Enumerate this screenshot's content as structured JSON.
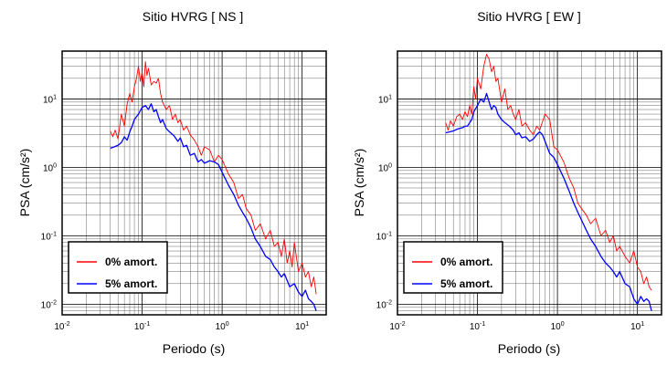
{
  "chart_data": [
    {
      "type": "line",
      "title": "Sitio HVRG [ NS ]",
      "xlabel": "Periodo (s)",
      "ylabel": "PSA (cm/s²)",
      "xscale": "log",
      "yscale": "log",
      "xlim": [
        0.01,
        20
      ],
      "ylim": [
        0.007,
        50
      ],
      "x_ticks": [
        "10-2",
        "10-1",
        "100",
        "101"
      ],
      "y_ticks": [
        "10-2",
        "10-1",
        "100",
        "101"
      ],
      "grid": true,
      "legend_placement": "bottom-left",
      "series": [
        {
          "name": "0% amort.",
          "color": "#ff0000",
          "x": [
            0.04,
            0.043,
            0.046,
            0.05,
            0.055,
            0.06,
            0.065,
            0.07,
            0.075,
            0.08,
            0.085,
            0.09,
            0.095,
            0.1,
            0.105,
            0.11,
            0.115,
            0.12,
            0.13,
            0.14,
            0.15,
            0.16,
            0.17,
            0.18,
            0.2,
            0.22,
            0.24,
            0.26,
            0.28,
            0.3,
            0.33,
            0.36,
            0.4,
            0.45,
            0.5,
            0.55,
            0.6,
            0.7,
            0.8,
            0.9,
            1.0,
            1.2,
            1.4,
            1.6,
            1.8,
            2.0,
            2.3,
            2.6,
            3.0,
            3.5,
            4.0,
            4.5,
            5.0,
            5.5,
            6.0,
            6.5,
            7.0,
            7.5,
            8.0,
            9.0,
            10.0,
            11.0,
            12.0,
            13.0,
            14.0,
            15.0
          ],
          "values": [
            3.4,
            2.8,
            3.5,
            2.6,
            6.0,
            4.0,
            8.5,
            12.0,
            9.0,
            15.0,
            20.0,
            30.0,
            18.0,
            25.0,
            15.0,
            35.0,
            22.0,
            28.0,
            16.0,
            18.0,
            17.0,
            20.0,
            12.0,
            9.0,
            7.0,
            8.0,
            5.0,
            6.0,
            4.5,
            5.0,
            3.5,
            4.0,
            3.0,
            2.5,
            2.0,
            1.5,
            2.0,
            1.8,
            1.2,
            1.5,
            1.3,
            0.8,
            0.6,
            0.35,
            0.4,
            0.25,
            0.2,
            0.12,
            0.15,
            0.09,
            0.12,
            0.07,
            0.08,
            0.05,
            0.09,
            0.04,
            0.06,
            0.035,
            0.08,
            0.03,
            0.04,
            0.025,
            0.03,
            0.018,
            0.025,
            0.014
          ]
        },
        {
          "name": "5% amort.",
          "color": "#0000ff",
          "x": [
            0.04,
            0.045,
            0.05,
            0.055,
            0.06,
            0.065,
            0.07,
            0.075,
            0.08,
            0.09,
            0.1,
            0.11,
            0.12,
            0.13,
            0.14,
            0.15,
            0.16,
            0.17,
            0.18,
            0.2,
            0.22,
            0.25,
            0.28,
            0.3,
            0.33,
            0.36,
            0.4,
            0.45,
            0.5,
            0.55,
            0.6,
            0.7,
            0.8,
            0.9,
            1.0,
            1.2,
            1.4,
            1.6,
            1.8,
            2.0,
            2.3,
            2.6,
            3.0,
            3.5,
            4.0,
            4.5,
            5.0,
            5.5,
            6.0,
            7.0,
            8.0,
            9.0,
            10.0,
            11.0,
            12.0,
            13.0,
            14.0,
            15.0
          ],
          "values": [
            1.9,
            2.0,
            2.1,
            2.3,
            2.8,
            2.5,
            3.3,
            4.0,
            5.0,
            6.0,
            7.5,
            8.0,
            7.0,
            8.5,
            6.5,
            7.0,
            5.5,
            4.5,
            5.0,
            3.7,
            3.3,
            2.9,
            2.4,
            2.7,
            2.0,
            2.1,
            1.5,
            1.6,
            1.2,
            1.3,
            1.15,
            1.25,
            1.2,
            1.1,
            0.85,
            0.55,
            0.4,
            0.28,
            0.22,
            0.18,
            0.13,
            0.09,
            0.07,
            0.05,
            0.045,
            0.035,
            0.03,
            0.025,
            0.028,
            0.018,
            0.02,
            0.015,
            0.013,
            0.016,
            0.012,
            0.011,
            0.01,
            0.008
          ]
        }
      ]
    },
    {
      "type": "line",
      "title": "Sitio HVRG [ EW ]",
      "xlabel": "Periodo (s)",
      "ylabel": "PSA (cm/s²)",
      "xscale": "log",
      "yscale": "log",
      "xlim": [
        0.01,
        20
      ],
      "ylim": [
        0.007,
        50
      ],
      "x_ticks": [
        "10-2",
        "10-1",
        "100",
        "101"
      ],
      "y_ticks": [
        "10-2",
        "10-1",
        "100",
        "101"
      ],
      "grid": true,
      "legend_placement": "bottom-left",
      "series": [
        {
          "name": "0% amort.",
          "color": "#ff0000",
          "x": [
            0.04,
            0.043,
            0.046,
            0.05,
            0.055,
            0.06,
            0.065,
            0.07,
            0.075,
            0.08,
            0.085,
            0.09,
            0.095,
            0.1,
            0.11,
            0.12,
            0.13,
            0.14,
            0.15,
            0.16,
            0.17,
            0.18,
            0.2,
            0.22,
            0.24,
            0.26,
            0.28,
            0.3,
            0.33,
            0.36,
            0.4,
            0.45,
            0.5,
            0.55,
            0.6,
            0.7,
            0.8,
            0.9,
            1.0,
            1.2,
            1.4,
            1.6,
            1.8,
            2.0,
            2.3,
            2.6,
            3.0,
            3.5,
            4.0,
            4.5,
            5.0,
            5.5,
            6.0,
            7.0,
            8.0,
            9.0,
            10.0,
            11.0,
            12.0,
            13.0,
            14.0,
            15.0
          ],
          "values": [
            4.5,
            3.5,
            4.8,
            4.0,
            5.5,
            6.0,
            5.0,
            6.5,
            5.5,
            8.0,
            6.0,
            15.0,
            10.0,
            20.0,
            14.0,
            30.0,
            45.0,
            38.0,
            25.0,
            30.0,
            18.0,
            20.0,
            9.0,
            14.0,
            7.0,
            8.0,
            6.0,
            5.0,
            7.0,
            4.0,
            4.5,
            3.5,
            3.0,
            4.0,
            3.5,
            6.0,
            5.0,
            2.0,
            1.8,
            1.2,
            0.7,
            0.5,
            0.3,
            0.25,
            0.2,
            0.15,
            0.18,
            0.1,
            0.12,
            0.08,
            0.1,
            0.06,
            0.07,
            0.05,
            0.04,
            0.06,
            0.035,
            0.03,
            0.02,
            0.025,
            0.018,
            0.016
          ]
        },
        {
          "name": "5% amort.",
          "color": "#0000ff",
          "x": [
            0.04,
            0.045,
            0.05,
            0.055,
            0.06,
            0.065,
            0.07,
            0.075,
            0.08,
            0.085,
            0.09,
            0.1,
            0.11,
            0.12,
            0.13,
            0.14,
            0.15,
            0.16,
            0.17,
            0.18,
            0.2,
            0.22,
            0.25,
            0.28,
            0.3,
            0.33,
            0.36,
            0.4,
            0.45,
            0.5,
            0.55,
            0.6,
            0.65,
            0.7,
            0.8,
            0.9,
            1.0,
            1.2,
            1.4,
            1.6,
            1.8,
            2.0,
            2.3,
            2.6,
            3.0,
            3.5,
            4.0,
            4.5,
            5.0,
            5.5,
            6.0,
            7.0,
            8.0,
            9.0,
            10.0,
            11.0,
            12.0,
            13.0,
            14.0,
            15.0
          ],
          "values": [
            3.2,
            3.3,
            3.4,
            3.6,
            3.7,
            3.8,
            4.0,
            4.0,
            4.5,
            5.0,
            6.5,
            8.0,
            10.0,
            9.0,
            12.0,
            9.0,
            7.0,
            8.0,
            7.5,
            6.0,
            5.0,
            4.5,
            4.0,
            3.5,
            3.0,
            3.2,
            2.7,
            2.8,
            2.4,
            2.6,
            3.0,
            3.3,
            3.0,
            2.4,
            1.6,
            1.4,
            1.1,
            0.7,
            0.45,
            0.3,
            0.22,
            0.17,
            0.12,
            0.09,
            0.07,
            0.05,
            0.04,
            0.035,
            0.03,
            0.025,
            0.03,
            0.02,
            0.018,
            0.012,
            0.01,
            0.013,
            0.011,
            0.012,
            0.011,
            0.008
          ]
        }
      ]
    }
  ]
}
